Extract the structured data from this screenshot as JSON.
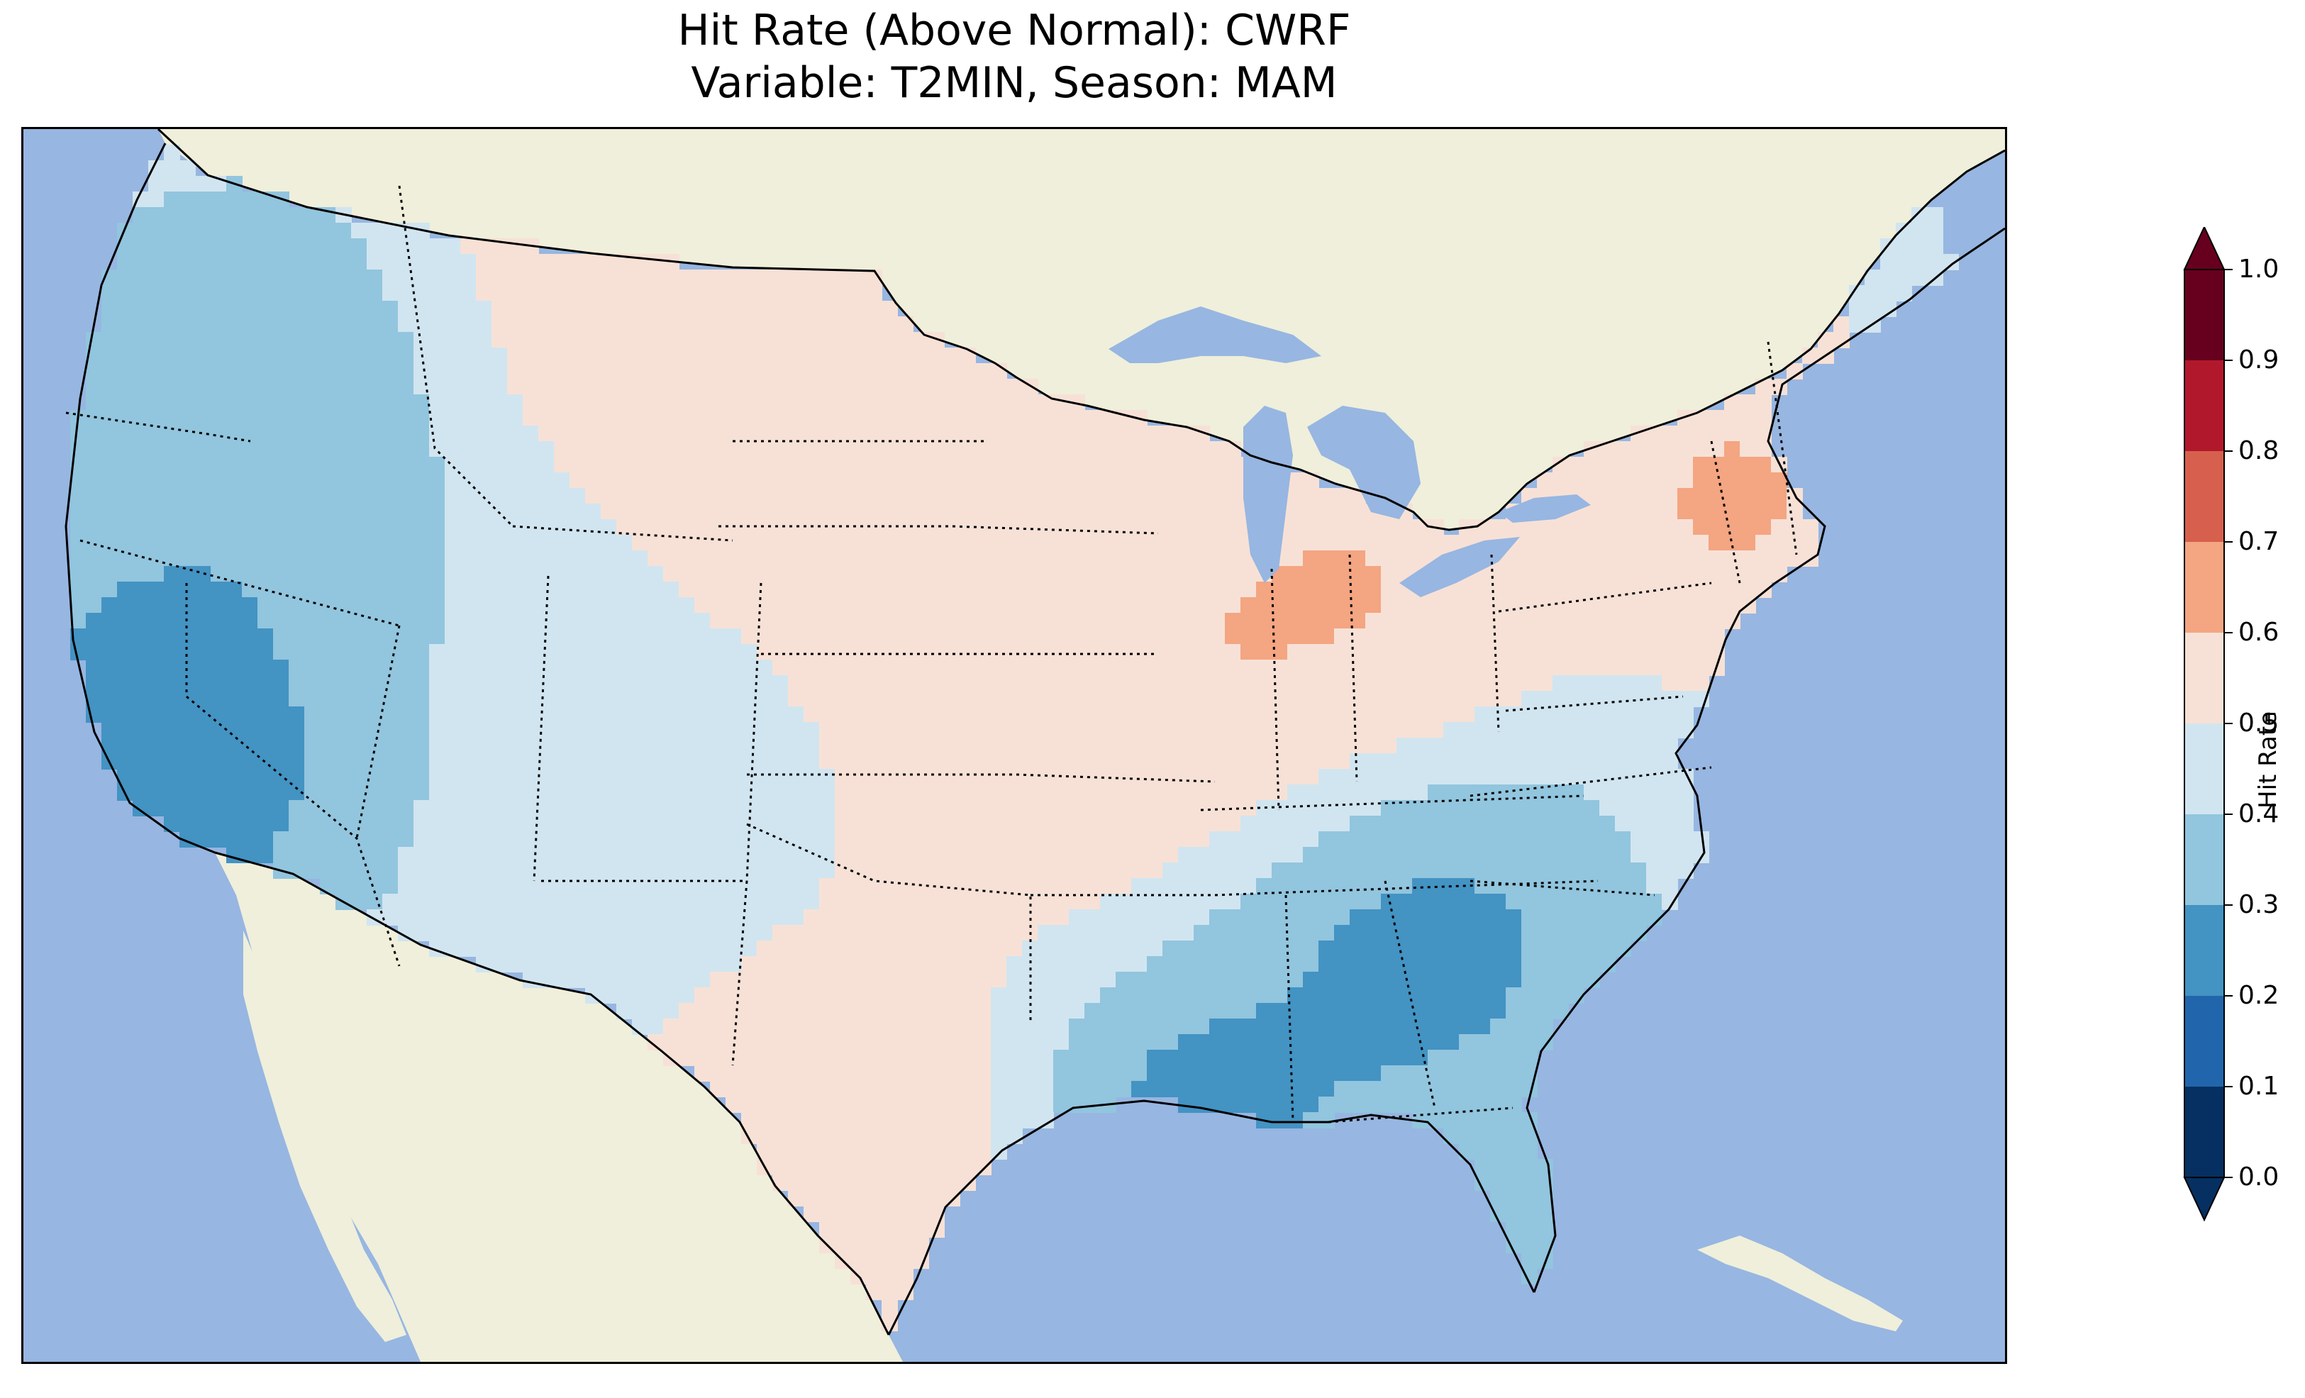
{
  "title_line1": "Hit Rate (Above Normal): CWRF",
  "title_line2": "Variable: T2MIN, Season: MAM",
  "colors": {
    "ocean": "#97b6e1",
    "land_outside": "#efefdb",
    "border": "#000000"
  },
  "colorbar": {
    "label": "Hit Rate",
    "ticks": [
      "0.0",
      "0.1",
      "0.2",
      "0.3",
      "0.4",
      "0.5",
      "0.6",
      "0.7",
      "0.8",
      "0.9",
      "1.0"
    ],
    "bins": [
      {
        "range": [
          0.0,
          0.1
        ],
        "color": "#053061"
      },
      {
        "range": [
          0.1,
          0.2
        ],
        "color": "#2166ac"
      },
      {
        "range": [
          0.2,
          0.3
        ],
        "color": "#4393c3"
      },
      {
        "range": [
          0.3,
          0.4
        ],
        "color": "#92c5de"
      },
      {
        "range": [
          0.4,
          0.5
        ],
        "color": "#d1e5f0"
      },
      {
        "range": [
          0.5,
          0.6
        ],
        "color": "#f7e1d6"
      },
      {
        "range": [
          0.6,
          0.7
        ],
        "color": "#f4a582"
      },
      {
        "range": [
          0.7,
          0.8
        ],
        "color": "#d6604d"
      },
      {
        "range": [
          0.8,
          0.9
        ],
        "color": "#b2182b"
      },
      {
        "range": [
          0.9,
          1.0
        ],
        "color": "#67001f"
      }
    ],
    "extend": "both"
  },
  "chart_data": {
    "type": "heatmap",
    "title": "Hit Rate (Above Normal): CWRF",
    "subtitle": "Variable: T2MIN, Season: MAM",
    "colorbar_label": "Hit Rate",
    "range": [
      0.0,
      1.0
    ],
    "regions": [
      {
        "region": "Southern California / southern Nevada",
        "value": 0.15
      },
      {
        "region": "Pacific Northwest interior",
        "value": 0.25
      },
      {
        "region": "Montana north",
        "value": 0.65
      },
      {
        "region": "South Dakota west",
        "value": 0.65
      },
      {
        "region": "Illinois",
        "value": 0.65
      },
      {
        "region": "Indiana / Ohio",
        "value": 0.65
      },
      {
        "region": "New England south (Massachusetts / Connecticut)",
        "value": 0.65
      },
      {
        "region": "Georgia / Alabama",
        "value": 0.2
      },
      {
        "region": "Louisiana coast",
        "value": 0.2
      },
      {
        "region": "West Texas",
        "value": 0.6
      },
      {
        "region": "Colorado / Utah",
        "value": 0.4
      },
      {
        "region": "Kansas / Nebraska",
        "value": 0.55
      },
      {
        "region": "Florida peninsula",
        "value": 0.35
      }
    ]
  }
}
